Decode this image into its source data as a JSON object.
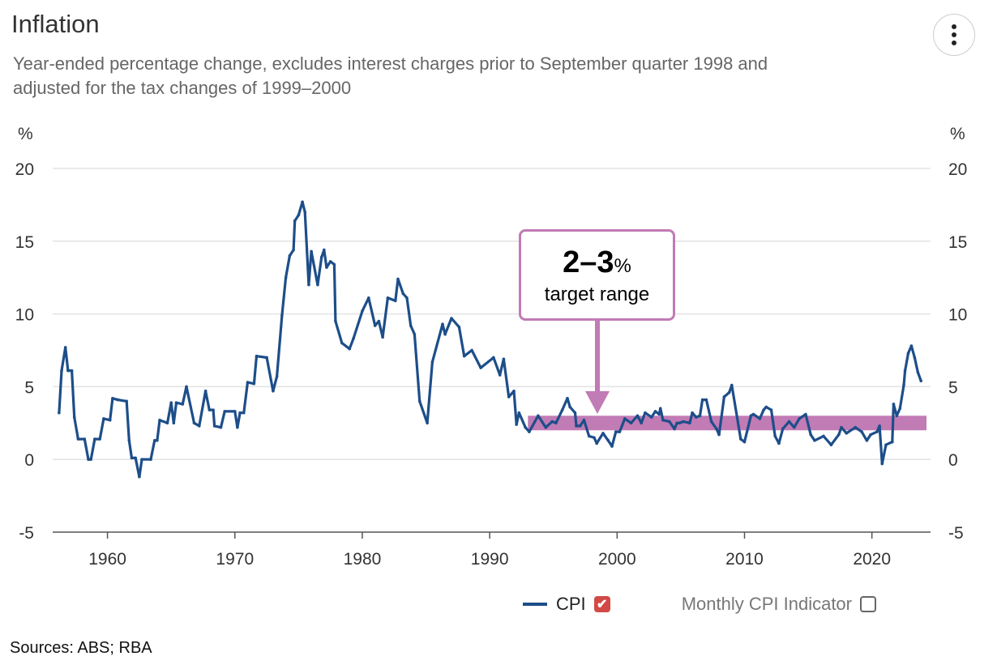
{
  "header": {
    "title": "Inflation",
    "subtitle": "Year-ended percentage change, excludes interest charges prior to September quarter 1998 and adjusted for the tax changes of 1999–2000",
    "menu_icon": "vertical-ellipsis-icon"
  },
  "annotation": {
    "range": "2–3",
    "unit": "%",
    "label": "target range",
    "color": "#c17bb5"
  },
  "legend": {
    "items": [
      {
        "label": "CPI",
        "checked": true,
        "color": "#1d4e89"
      },
      {
        "label": "Monthly CPI Indicator",
        "checked": false
      }
    ]
  },
  "footer": {
    "sources": "Sources: ABS; RBA"
  },
  "chart_data": {
    "type": "line",
    "title": "Inflation",
    "ylabel_left": "%",
    "ylabel_right": "%",
    "ylim": [
      -5,
      20
    ],
    "xlim": [
      1955.7,
      2024.6
    ],
    "yticks": [
      -5,
      0,
      5,
      10,
      15,
      20
    ],
    "xticks": [
      1960,
      1970,
      1980,
      1990,
      2000,
      2010,
      2020
    ],
    "grid": true,
    "legend_position": "bottom-right",
    "target_band": {
      "from_year": 1993,
      "low": 2,
      "high": 3,
      "color": "#c17bb5"
    },
    "series": [
      {
        "name": "CPI",
        "color": "#1d4e89",
        "points": [
          [
            1956.2,
            3.2
          ],
          [
            1956.4,
            6.1
          ],
          [
            1956.7,
            7.7
          ],
          [
            1956.9,
            6.1
          ],
          [
            1957.2,
            6.1
          ],
          [
            1957.4,
            2.9
          ],
          [
            1957.7,
            1.4
          ],
          [
            1958.2,
            1.4
          ],
          [
            1958.5,
            0
          ],
          [
            1958.7,
            0
          ],
          [
            1959.0,
            1.4
          ],
          [
            1959.4,
            1.4
          ],
          [
            1959.7,
            2.8
          ],
          [
            1960.2,
            2.7
          ],
          [
            1960.4,
            4.2
          ],
          [
            1960.8,
            4.1
          ],
          [
            1961.5,
            4.0
          ],
          [
            1961.7,
            1.3
          ],
          [
            1961.9,
            0.1
          ],
          [
            1962.2,
            0.1
          ],
          [
            1962.5,
            -1.2
          ],
          [
            1962.7,
            0
          ],
          [
            1963.4,
            0
          ],
          [
            1963.7,
            1.3
          ],
          [
            1963.9,
            1.3
          ],
          [
            1964.1,
            2.7
          ],
          [
            1964.7,
            2.5
          ],
          [
            1965.0,
            3.9
          ],
          [
            1965.2,
            2.5
          ],
          [
            1965.4,
            3.9
          ],
          [
            1965.9,
            3.8
          ],
          [
            1966.2,
            5.0
          ],
          [
            1966.8,
            2.5
          ],
          [
            1967.2,
            2.3
          ],
          [
            1967.7,
            4.7
          ],
          [
            1968.0,
            3.4
          ],
          [
            1968.3,
            3.4
          ],
          [
            1968.4,
            2.3
          ],
          [
            1968.9,
            2.2
          ],
          [
            1969.2,
            3.3
          ],
          [
            1970.0,
            3.3
          ],
          [
            1970.2,
            2.2
          ],
          [
            1970.4,
            3.2
          ],
          [
            1970.7,
            3.2
          ],
          [
            1971.0,
            5.3
          ],
          [
            1971.5,
            5.2
          ],
          [
            1971.7,
            7.1
          ],
          [
            1972.5,
            7.0
          ],
          [
            1973.0,
            4.7
          ],
          [
            1973.3,
            5.7
          ],
          [
            1973.7,
            9.9
          ],
          [
            1974.0,
            12.5
          ],
          [
            1974.3,
            14.0
          ],
          [
            1974.6,
            14.4
          ],
          [
            1974.7,
            16.4
          ],
          [
            1975.0,
            16.8
          ],
          [
            1975.3,
            17.7
          ],
          [
            1975.5,
            17.0
          ],
          [
            1975.8,
            12.0
          ],
          [
            1976.0,
            14.3
          ],
          [
            1976.5,
            12.0
          ],
          [
            1976.8,
            13.9
          ],
          [
            1977.0,
            14.4
          ],
          [
            1977.2,
            13.2
          ],
          [
            1977.5,
            13.6
          ],
          [
            1977.8,
            13.4
          ],
          [
            1977.9,
            9.5
          ],
          [
            1978.4,
            8.0
          ],
          [
            1979.0,
            7.6
          ],
          [
            1979.3,
            8.3
          ],
          [
            1980.0,
            10.2
          ],
          [
            1980.5,
            11.1
          ],
          [
            1981.0,
            9.2
          ],
          [
            1981.3,
            9.5
          ],
          [
            1981.6,
            8.4
          ],
          [
            1982.0,
            11.1
          ],
          [
            1982.6,
            10.9
          ],
          [
            1982.8,
            12.4
          ],
          [
            1983.2,
            11.4
          ],
          [
            1983.5,
            11.1
          ],
          [
            1983.8,
            9.2
          ],
          [
            1984.1,
            8.6
          ],
          [
            1984.5,
            4.0
          ],
          [
            1985.1,
            2.5
          ],
          [
            1985.5,
            6.7
          ],
          [
            1986.3,
            9.3
          ],
          [
            1986.5,
            8.6
          ],
          [
            1987.0,
            9.7
          ],
          [
            1987.6,
            9.1
          ],
          [
            1988.0,
            7.1
          ],
          [
            1988.6,
            7.5
          ],
          [
            1989.3,
            6.3
          ],
          [
            1990.3,
            7.0
          ],
          [
            1990.8,
            5.8
          ],
          [
            1991.1,
            6.9
          ],
          [
            1991.5,
            4.3
          ],
          [
            1991.9,
            4.7
          ],
          [
            1992.1,
            2.4
          ],
          [
            1992.3,
            3.2
          ],
          [
            1992.8,
            2.2
          ],
          [
            1993.1,
            1.9
          ],
          [
            1993.8,
            3.0
          ],
          [
            1994.4,
            2.2
          ],
          [
            1994.9,
            2.6
          ],
          [
            1995.2,
            2.5
          ],
          [
            1995.7,
            3.4
          ],
          [
            1996.1,
            4.2
          ],
          [
            1996.3,
            3.6
          ],
          [
            1996.7,
            3.2
          ],
          [
            1996.8,
            2.3
          ],
          [
            1997.1,
            2.3
          ],
          [
            1997.4,
            2.7
          ],
          [
            1997.8,
            1.6
          ],
          [
            1998.2,
            1.5
          ],
          [
            1998.4,
            1.1
          ],
          [
            1998.9,
            1.8
          ],
          [
            1999.3,
            1.3
          ],
          [
            1999.6,
            0.9
          ],
          [
            1999.9,
            1.9
          ],
          [
            2000.2,
            1.9
          ],
          [
            2000.6,
            2.8
          ],
          [
            2001.1,
            2.5
          ],
          [
            2001.6,
            3.0
          ],
          [
            2001.9,
            2.5
          ],
          [
            2002.2,
            3.2
          ],
          [
            2002.7,
            2.9
          ],
          [
            2003.0,
            3.3
          ],
          [
            2003.3,
            3.1
          ],
          [
            2003.4,
            3.5
          ],
          [
            2003.6,
            2.7
          ],
          [
            2004.1,
            2.6
          ],
          [
            2004.5,
            2.1
          ],
          [
            2004.7,
            2.5
          ],
          [
            2004.9,
            2.5
          ],
          [
            2005.2,
            2.6
          ],
          [
            2005.7,
            2.5
          ],
          [
            2005.9,
            3.2
          ],
          [
            2006.2,
            2.9
          ],
          [
            2006.5,
            3.0
          ],
          [
            2006.7,
            4.1
          ],
          [
            2007.0,
            4.1
          ],
          [
            2007.4,
            2.6
          ],
          [
            2007.8,
            2.1
          ],
          [
            2008.0,
            1.7
          ],
          [
            2008.4,
            4.3
          ],
          [
            2008.8,
            4.6
          ],
          [
            2009.0,
            5.1
          ],
          [
            2009.7,
            1.4
          ],
          [
            2010.0,
            1.2
          ],
          [
            2010.5,
            3.0
          ],
          [
            2010.7,
            3.1
          ],
          [
            2011.2,
            2.8
          ],
          [
            2011.5,
            3.4
          ],
          [
            2011.7,
            3.6
          ],
          [
            2012.1,
            3.4
          ],
          [
            2012.4,
            1.6
          ],
          [
            2012.7,
            1.1
          ],
          [
            2013.0,
            2.1
          ],
          [
            2013.5,
            2.6
          ],
          [
            2013.9,
            2.2
          ],
          [
            2014.3,
            2.8
          ],
          [
            2014.8,
            3.1
          ],
          [
            2015.2,
            1.7
          ],
          [
            2015.5,
            1.3
          ],
          [
            2016.2,
            1.6
          ],
          [
            2016.8,
            1.0
          ],
          [
            2017.4,
            1.7
          ],
          [
            2017.6,
            2.2
          ],
          [
            2018.0,
            1.8
          ],
          [
            2018.7,
            2.2
          ],
          [
            2019.2,
            1.9
          ],
          [
            2019.6,
            1.3
          ],
          [
            2019.9,
            1.7
          ],
          [
            2020.4,
            1.9
          ],
          [
            2020.6,
            2.3
          ],
          [
            2020.8,
            -0.3
          ],
          [
            2021.1,
            1.0
          ],
          [
            2021.6,
            1.2
          ],
          [
            2021.7,
            3.8
          ],
          [
            2021.95,
            3.0
          ],
          [
            2022.2,
            3.5
          ],
          [
            2022.5,
            5.1
          ],
          [
            2022.6,
            6.1
          ],
          [
            2022.85,
            7.3
          ],
          [
            2023.1,
            7.8
          ],
          [
            2023.35,
            7.0
          ],
          [
            2023.6,
            6.0
          ],
          [
            2023.85,
            5.4
          ]
        ]
      }
    ]
  }
}
